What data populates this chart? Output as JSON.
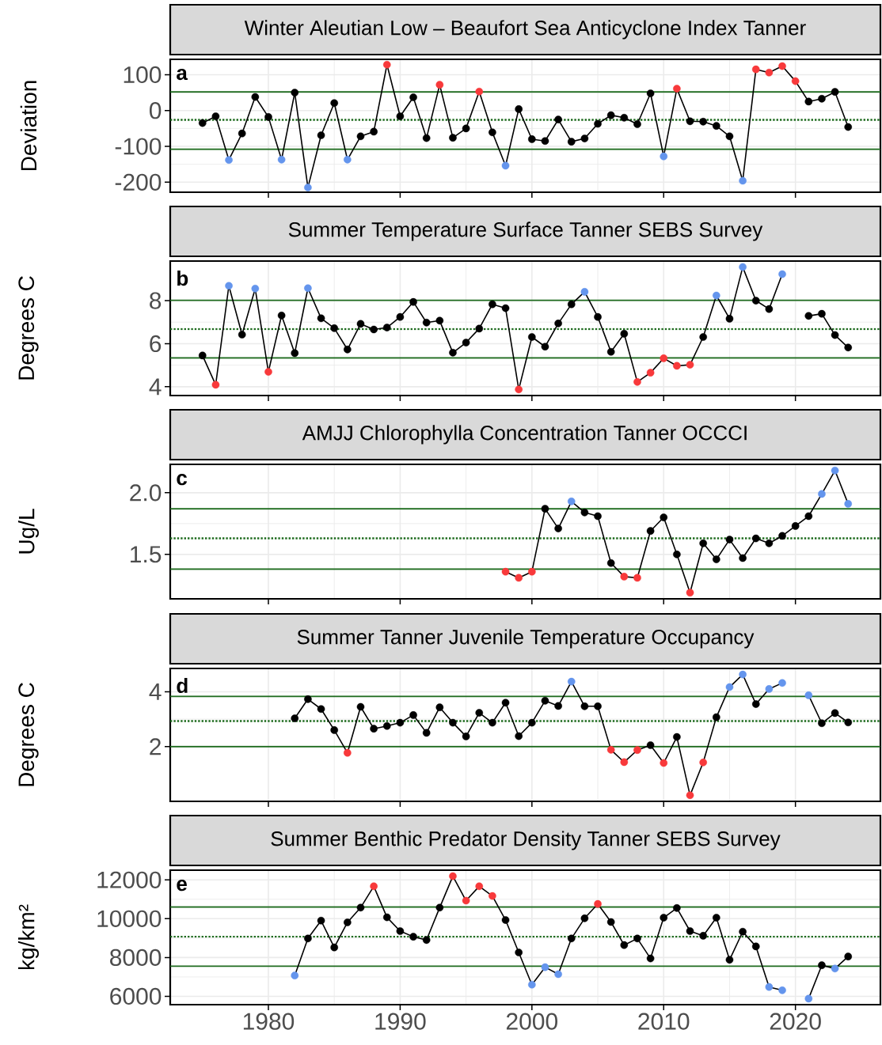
{
  "chart_data": [
    {
      "type": "line",
      "title": "Winter Aleutian Low – Beaufort Sea Anticyclone Index Tanner",
      "ylabel": "Deviation",
      "annotations": [
        "a"
      ],
      "marker": "circle",
      "grid": true,
      "tick_labels": "y",
      "color": "#000000",
      "x": [
        1975,
        1976,
        1977,
        1978,
        1979,
        1980,
        1981,
        1982,
        1983,
        1984,
        1985,
        1986,
        1987,
        1988,
        1989,
        1990,
        1991,
        1992,
        1993,
        1994,
        1995,
        1996,
        1997,
        1998,
        1999,
        2000,
        2001,
        2002,
        2003,
        2004,
        2005,
        2006,
        2007,
        2008,
        2009,
        2010,
        2011,
        2012,
        2013,
        2014,
        2015,
        2016,
        2017,
        2018,
        2019,
        2020,
        2021,
        2022,
        2023,
        2024
      ],
      "values": [
        -35,
        -16,
        -138,
        -64,
        38,
        -18,
        -137,
        50,
        -215,
        -69,
        21,
        -137,
        -72,
        -59,
        128,
        -16,
        37,
        -77,
        72,
        -76,
        -50,
        53,
        -61,
        -154,
        4,
        -80,
        -85,
        -25,
        -87,
        -78,
        -37,
        -13,
        -20,
        -38,
        48,
        -128,
        61,
        -30,
        -31,
        -43,
        -72,
        -196,
        115,
        106,
        124,
        82,
        25,
        33,
        52,
        -46
      ],
      "colors": [
        "#000000",
        "#000000",
        "#6495ed",
        "#000000",
        "#000000",
        "#000000",
        "#6495ed",
        "#000000",
        "#6495ed",
        "#000000",
        "#000000",
        "#6495ed",
        "#000000",
        "#000000",
        "#f8393b",
        "#000000",
        "#000000",
        "#000000",
        "#f8393b",
        "#000000",
        "#000000",
        "#f8393b",
        "#000000",
        "#6495ed",
        "#000000",
        "#000000",
        "#000000",
        "#000000",
        "#000000",
        "#000000",
        "#000000",
        "#000000",
        "#000000",
        "#000000",
        "#000000",
        "#6495ed",
        "#f8393b",
        "#000000",
        "#000000",
        "#000000",
        "#000000",
        "#6495ed",
        "#f8393b",
        "#f8393b",
        "#f8393b",
        "#f8393b",
        "#000000",
        "#000000",
        "#000000",
        "#000000"
      ],
      "ref_lines": [
        {
          "axis": "y",
          "value": 52,
          "color": "#1e6b1e",
          "line_style": "solid"
        },
        {
          "axis": "y",
          "value": -26,
          "color": "#1e6b1e",
          "line_style": "dotted"
        },
        {
          "axis": "y",
          "value": -108,
          "color": "#1e6b1e",
          "line_style": "solid"
        }
      ],
      "xlim": [
        1972.55,
        2026.45
      ],
      "xticks": [
        1980,
        1990,
        2000,
        2010,
        2020
      ],
      "ylim": [
        -228,
        143
      ],
      "yticks": [
        -200,
        -100,
        0,
        100
      ]
    },
    {
      "type": "line",
      "title": "Summer Temperature Surface Tanner SEBS Survey",
      "ylabel": "Degrees C",
      "annotations": [
        "b"
      ],
      "marker": "circle",
      "grid": true,
      "tick_labels": "y",
      "color": "#000000",
      "x": [
        1975,
        1976,
        1977,
        1978,
        1979,
        1980,
        1981,
        1982,
        1983,
        1984,
        1985,
        1986,
        1987,
        1988,
        1989,
        1990,
        1991,
        1992,
        1993,
        1994,
        1995,
        1996,
        1997,
        1998,
        1999,
        2000,
        2001,
        2002,
        2003,
        2004,
        2005,
        2006,
        2007,
        2008,
        2009,
        2010,
        2011,
        2012,
        2013,
        2014,
        2015,
        2016,
        2017,
        2018,
        2019,
        2020,
        2021,
        2022,
        2023,
        2024
      ],
      "values": [
        5.45,
        4.09,
        8.69,
        6.42,
        8.56,
        4.69,
        7.31,
        5.56,
        8.58,
        7.18,
        6.72,
        5.73,
        6.92,
        6.66,
        6.75,
        7.24,
        7.94,
        6.98,
        7.07,
        5.58,
        6.05,
        6.7,
        7.83,
        7.65,
        3.87,
        6.31,
        5.86,
        6.94,
        7.83,
        8.41,
        7.24,
        5.62,
        6.46,
        4.22,
        4.65,
        5.32,
        4.97,
        5.02,
        6.31,
        8.24,
        7.16,
        9.56,
        8.0,
        7.61,
        9.23,
        null,
        7.29,
        7.39,
        6.4,
        5.82
      ],
      "colors": [
        "#000000",
        "#f8393b",
        "#6495ed",
        "#000000",
        "#6495ed",
        "#f8393b",
        "#000000",
        "#000000",
        "#6495ed",
        "#000000",
        "#000000",
        "#000000",
        "#000000",
        "#000000",
        "#000000",
        "#000000",
        "#000000",
        "#000000",
        "#000000",
        "#000000",
        "#000000",
        "#000000",
        "#000000",
        "#000000",
        "#f8393b",
        "#000000",
        "#000000",
        "#000000",
        "#000000",
        "#6495ed",
        "#000000",
        "#000000",
        "#000000",
        "#f8393b",
        "#f8393b",
        "#f8393b",
        "#f8393b",
        "#f8393b",
        "#000000",
        "#6495ed",
        "#000000",
        "#6495ed",
        "#000000",
        "#000000",
        "#6495ed",
        null,
        "#000000",
        "#000000",
        "#000000",
        "#000000"
      ],
      "ref_lines": [
        {
          "axis": "y",
          "value": 8.02,
          "color": "#1e6b1e",
          "line_style": "solid"
        },
        {
          "axis": "y",
          "value": 6.68,
          "color": "#1e6b1e",
          "line_style": "dotted"
        },
        {
          "axis": "y",
          "value": 5.34,
          "color": "#1e6b1e",
          "line_style": "solid"
        }
      ],
      "xlim": [
        1972.55,
        2026.45
      ],
      "xticks": [
        1980,
        1990,
        2000,
        2010,
        2020
      ],
      "ylim": [
        3.59,
        9.84
      ],
      "yticks": [
        4,
        6,
        8
      ]
    },
    {
      "type": "line",
      "title": "AMJJ Chlorophylla Concentration Tanner OCCCI",
      "ylabel": "Ug/L",
      "annotations": [
        "c"
      ],
      "marker": "circle",
      "grid": true,
      "tick_labels": "y",
      "color": "#000000",
      "x": [
        1998,
        1999,
        2000,
        2001,
        2002,
        2003,
        2004,
        2005,
        2006,
        2007,
        2008,
        2009,
        2010,
        2011,
        2012,
        2013,
        2014,
        2015,
        2016,
        2017,
        2018,
        2019,
        2020,
        2021,
        2022,
        2023,
        2024
      ],
      "values": [
        1.36,
        1.31,
        1.36,
        1.87,
        1.71,
        1.93,
        1.84,
        1.81,
        1.43,
        1.32,
        1.31,
        1.69,
        1.8,
        1.5,
        1.19,
        1.59,
        1.46,
        1.62,
        1.47,
        1.63,
        1.59,
        1.65,
        1.73,
        1.81,
        1.99,
        2.18,
        1.91
      ],
      "colors": [
        "#f8393b",
        "#f8393b",
        "#f8393b",
        "#000000",
        "#000000",
        "#6495ed",
        "#000000",
        "#000000",
        "#000000",
        "#f8393b",
        "#f8393b",
        "#000000",
        "#000000",
        "#000000",
        "#f8393b",
        "#000000",
        "#000000",
        "#000000",
        "#000000",
        "#000000",
        "#000000",
        "#000000",
        "#000000",
        "#000000",
        "#6495ed",
        "#6495ed",
        "#6495ed"
      ],
      "ref_lines": [
        {
          "axis": "y",
          "value": 1.87,
          "color": "#1e6b1e",
          "line_style": "solid"
        },
        {
          "axis": "y",
          "value": 1.63,
          "color": "#1e6b1e",
          "line_style": "dotted"
        },
        {
          "axis": "y",
          "value": 1.38,
          "color": "#1e6b1e",
          "line_style": "solid"
        }
      ],
      "xlim": [
        1972.55,
        2026.45
      ],
      "xticks": [
        1980,
        1990,
        2000,
        2010,
        2020
      ],
      "ylim": [
        1.14,
        2.23
      ],
      "yticks": [
        1.5,
        {
          "value": 2,
          "label": "2.0"
        }
      ]
    },
    {
      "type": "line",
      "title": "Summer Tanner Juvenile Temperature Occupancy",
      "ylabel": "Degrees C",
      "annotations": [
        "d"
      ],
      "marker": "circle",
      "grid": true,
      "tick_labels": "y",
      "color": "#000000",
      "x": [
        1982,
        1983,
        1984,
        1985,
        1986,
        1987,
        1988,
        1989,
        1990,
        1991,
        1992,
        1993,
        1994,
        1995,
        1996,
        1997,
        1998,
        1999,
        2000,
        2001,
        2002,
        2003,
        2004,
        2005,
        2006,
        2007,
        2008,
        2009,
        2010,
        2011,
        2012,
        2013,
        2014,
        2015,
        2016,
        2017,
        2018,
        2019,
        2020,
        2021,
        2022,
        2023,
        2024
      ],
      "values": [
        3.03,
        3.73,
        3.37,
        2.6,
        1.77,
        3.45,
        2.65,
        2.75,
        2.87,
        3.15,
        2.5,
        3.43,
        2.87,
        2.37,
        3.23,
        2.87,
        3.6,
        2.38,
        2.87,
        3.67,
        3.48,
        4.37,
        3.47,
        3.47,
        1.88,
        1.43,
        1.87,
        2.05,
        1.4,
        2.35,
        0.22,
        1.42,
        3.07,
        4.17,
        4.63,
        3.55,
        4.1,
        4.32,
        null,
        3.87,
        2.85,
        3.22,
        2.88
      ],
      "colors": [
        "#000000",
        "#000000",
        "#000000",
        "#000000",
        "#f8393b",
        "#000000",
        "#000000",
        "#000000",
        "#000000",
        "#000000",
        "#000000",
        "#000000",
        "#000000",
        "#000000",
        "#000000",
        "#000000",
        "#000000",
        "#000000",
        "#000000",
        "#000000",
        "#000000",
        "#6495ed",
        "#000000",
        "#000000",
        "#f8393b",
        "#f8393b",
        "#f8393b",
        "#000000",
        "#f8393b",
        "#000000",
        "#f8393b",
        "#f8393b",
        "#000000",
        "#6495ed",
        "#6495ed",
        "#000000",
        "#6495ed",
        "#6495ed",
        null,
        "#6495ed",
        "#000000",
        "#000000",
        "#000000"
      ],
      "ref_lines": [
        {
          "axis": "y",
          "value": 3.83,
          "color": "#1e6b1e",
          "line_style": "solid"
        },
        {
          "axis": "y",
          "value": 2.93,
          "color": "#1e6b1e",
          "line_style": "dotted"
        },
        {
          "axis": "y",
          "value": 2.0,
          "color": "#1e6b1e",
          "line_style": "solid"
        }
      ],
      "xlim": [
        1972.55,
        2026.45
      ],
      "xticks": [
        1980,
        1990,
        2000,
        2010,
        2020
      ],
      "ylim": [
        0.0,
        4.85
      ],
      "yticks": [
        2,
        4
      ]
    },
    {
      "type": "line",
      "title": "Summer Benthic Predator Density Tanner SEBS Survey",
      "ylabel": "kg/km²",
      "annotations": [
        "e"
      ],
      "marker": "circle",
      "grid": true,
      "color": "#000000",
      "x": [
        1982,
        1983,
        1984,
        1985,
        1986,
        1987,
        1988,
        1989,
        1990,
        1991,
        1992,
        1993,
        1994,
        1995,
        1996,
        1997,
        1998,
        1999,
        2000,
        2001,
        2002,
        2003,
        2004,
        2005,
        2006,
        2007,
        2008,
        2009,
        2010,
        2011,
        2012,
        2013,
        2014,
        2015,
        2016,
        2017,
        2018,
        2019,
        2020,
        2021,
        2022,
        2023,
        2024
      ],
      "values": [
        7070,
        8980,
        9900,
        8520,
        9810,
        10570,
        11670,
        10070,
        9360,
        9070,
        8900,
        10570,
        12190,
        10930,
        11670,
        11170,
        9930,
        8260,
        6600,
        7500,
        7140,
        8980,
        10020,
        10760,
        9830,
        8640,
        8980,
        7950,
        10050,
        10550,
        9360,
        9120,
        10050,
        7880,
        9330,
        8570,
        6480,
        6310,
        null,
        5880,
        7600,
        7430,
        8050
      ],
      "colors": [
        "#6495ed",
        "#000000",
        "#000000",
        "#000000",
        "#000000",
        "#000000",
        "#f8393b",
        "#000000",
        "#000000",
        "#000000",
        "#000000",
        "#000000",
        "#f8393b",
        "#f8393b",
        "#f8393b",
        "#f8393b",
        "#000000",
        "#000000",
        "#6495ed",
        "#6495ed",
        "#6495ed",
        "#000000",
        "#000000",
        "#f8393b",
        "#000000",
        "#000000",
        "#000000",
        "#000000",
        "#000000",
        "#000000",
        "#000000",
        "#000000",
        "#000000",
        "#000000",
        "#000000",
        "#000000",
        "#6495ed",
        "#6495ed",
        null,
        "#6495ed",
        "#000000",
        "#6495ed",
        "#000000"
      ],
      "ref_lines": [
        {
          "axis": "y",
          "value": 10600,
          "color": "#1e6b1e",
          "line_style": "solid"
        },
        {
          "axis": "y",
          "value": 9070,
          "color": "#1e6b1e",
          "line_style": "dotted"
        },
        {
          "axis": "y",
          "value": 7550,
          "color": "#1e6b1e",
          "line_style": "solid"
        }
      ],
      "xlim": [
        1972.55,
        2026.45
      ],
      "xticks": [
        1980,
        1990,
        2000,
        2010,
        2020
      ],
      "ylim": [
        5570,
        12500
      ],
      "yticks": [
        6000,
        8000,
        10000,
        12000
      ]
    }
  ]
}
